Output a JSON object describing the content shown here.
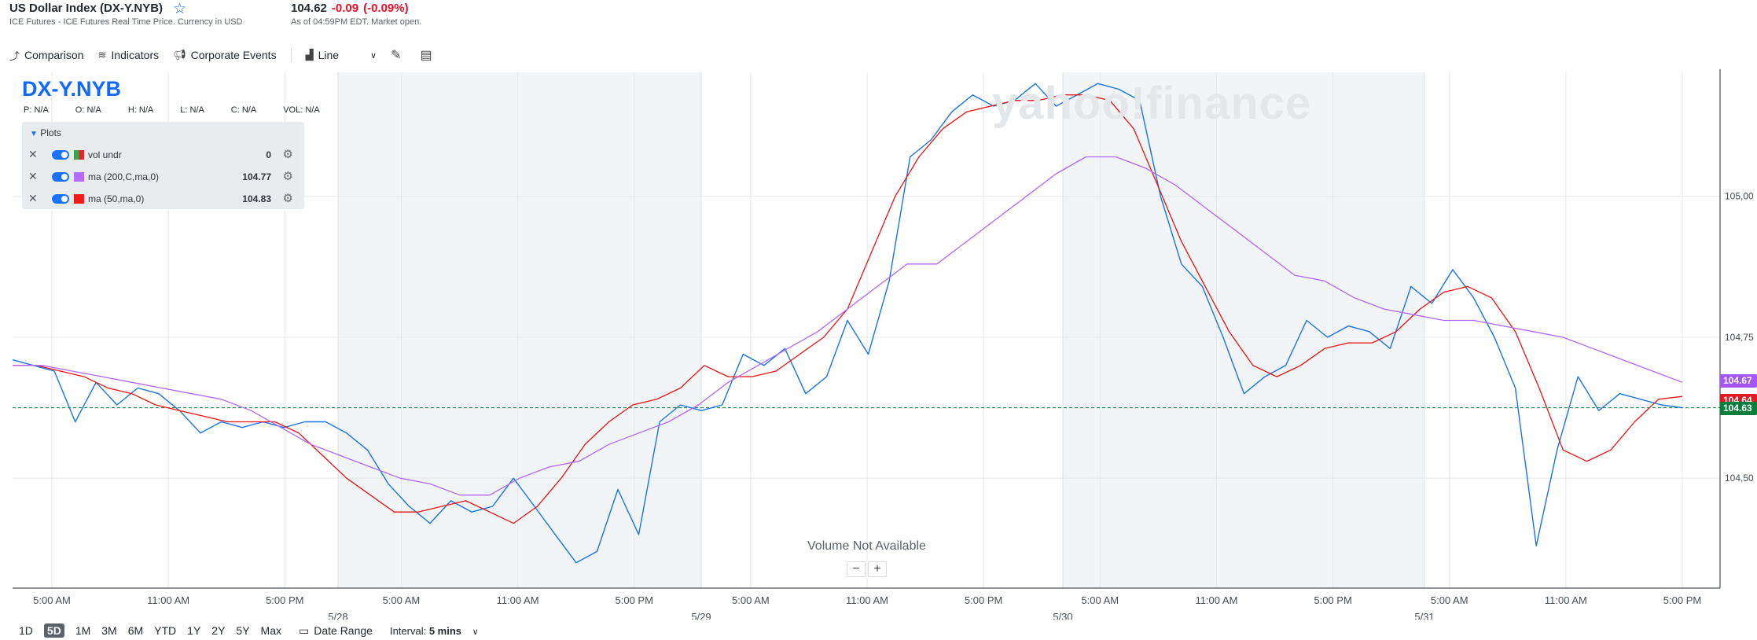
{
  "header": {
    "title": "US Dollar Index (DX-Y.NYB)",
    "subtitle": "ICE Futures - ICE Futures Real Time Price. Currency in USD",
    "price": "104.62",
    "change": "-0.09",
    "change_pct": "(-0.09%)",
    "as_of": "As of 04:59PM EDT. Market open."
  },
  "toolbar": {
    "comparison": "Comparison",
    "indicators": "Indicators",
    "corporate_events": "Corporate Events",
    "chart_type": "Line"
  },
  "chart_overlay": {
    "symbol": "DX-Y.NYB",
    "ohlc": [
      "P: N/A",
      "O: N/A",
      "H: N/A",
      "L: N/A",
      "C: N/A",
      "VOL: N/A"
    ],
    "plots_header": "Plots",
    "plots": [
      {
        "name": "vol undr",
        "value": "0",
        "color": "#2ea043"
      },
      {
        "name": "ma (200,C,ma,0)",
        "value": "104.77",
        "color": "#b266ff"
      },
      {
        "name": "ma (50,ma,0)",
        "value": "104.83",
        "color": "#ee1111"
      }
    ],
    "volume_note": "Volume Not Available",
    "watermark": "yahoo!finance",
    "zoom_out": "−",
    "zoom_in": "+"
  },
  "price_tags": [
    {
      "label": "104.67",
      "color": "#a855f7",
      "value": 104.67
    },
    {
      "label": "104.64",
      "color": "#e21b23",
      "value": 104.645
    },
    {
      "label": "104.63",
      "color": "#0a7f3a",
      "value": 104.625
    }
  ],
  "chart_data": {
    "type": "line",
    "ylim": [
      104.305,
      105.22
    ],
    "y_ticks": [
      104.5,
      104.75,
      105.0
    ],
    "y_tick_labels": [
      "104,50",
      "104,75",
      "105,00"
    ],
    "time_labels": [
      "5:00 AM",
      "11:00 AM",
      "5:00 PM",
      "5:00 AM",
      "11:00 AM",
      "5:00 PM",
      "5:00 AM",
      "11:00 AM",
      "5:00 PM",
      "5:00 AM",
      "11:00 AM",
      "5:00 PM",
      "5:00 AM",
      "11:00 AM",
      "5:00 PM"
    ],
    "date_labels": [
      "5/28",
      "5/29",
      "5/30",
      "5/31"
    ],
    "current_price": 104.625,
    "series": [
      {
        "name": "DX-Y.NYB",
        "color": "#1a73e8",
        "values": [
          104.71,
          104.7,
          104.69,
          104.6,
          104.67,
          104.63,
          104.66,
          104.65,
          104.62,
          104.58,
          104.6,
          104.59,
          104.6,
          104.59,
          104.6,
          104.6,
          104.58,
          104.55,
          104.49,
          104.45,
          104.42,
          104.46,
          104.44,
          104.45,
          104.5,
          104.45,
          104.4,
          104.35,
          104.37,
          104.48,
          104.4,
          104.6,
          104.63,
          104.62,
          104.63,
          104.72,
          104.7,
          104.73,
          104.65,
          104.68,
          104.78,
          104.72,
          104.85,
          105.07,
          105.1,
          105.15,
          105.18,
          105.16,
          105.17,
          105.2,
          105.16,
          105.18,
          105.2,
          105.19,
          105.17,
          105.0,
          104.88,
          104.84,
          104.75,
          104.65,
          104.68,
          104.7,
          104.78,
          104.75,
          104.77,
          104.76,
          104.73,
          104.84,
          104.81,
          104.87,
          104.82,
          104.75,
          104.66,
          104.38,
          104.55,
          104.68,
          104.62,
          104.65,
          104.64,
          104.63,
          104.625
        ]
      },
      {
        "name": "ma (50,ma,0)",
        "color": "#ee1111",
        "values": [
          104.7,
          104.7,
          104.69,
          104.68,
          104.66,
          104.65,
          104.63,
          104.62,
          104.61,
          104.6,
          104.6,
          104.6,
          104.58,
          104.54,
          104.5,
          104.47,
          104.44,
          104.44,
          104.45,
          104.46,
          104.44,
          104.42,
          104.45,
          104.5,
          104.56,
          104.6,
          104.63,
          104.64,
          104.66,
          104.7,
          104.68,
          104.68,
          104.69,
          104.72,
          104.75,
          104.8,
          104.9,
          105.0,
          105.07,
          105.12,
          105.15,
          105.16,
          105.17,
          105.17,
          105.18,
          105.18,
          105.17,
          105.12,
          105.02,
          104.92,
          104.84,
          104.76,
          104.7,
          104.68,
          104.7,
          104.73,
          104.74,
          104.74,
          104.76,
          104.8,
          104.83,
          104.84,
          104.82,
          104.76,
          104.66,
          104.55,
          104.53,
          104.55,
          104.6,
          104.64,
          104.645
        ]
      },
      {
        "name": "ma (200,C,ma,0)",
        "color": "#b266ff",
        "values": [
          104.7,
          104.7,
          104.69,
          104.68,
          104.67,
          104.66,
          104.65,
          104.64,
          104.62,
          104.59,
          104.56,
          104.54,
          104.52,
          104.5,
          104.49,
          104.47,
          104.47,
          104.5,
          104.52,
          104.53,
          104.56,
          104.58,
          104.6,
          104.63,
          104.67,
          104.7,
          104.73,
          104.76,
          104.8,
          104.84,
          104.88,
          104.88,
          104.92,
          104.96,
          105.0,
          105.04,
          105.07,
          105.07,
          105.05,
          105.02,
          104.98,
          104.94,
          104.9,
          104.86,
          104.85,
          104.82,
          104.8,
          104.79,
          104.78,
          104.78,
          104.77,
          104.76,
          104.75,
          104.73,
          104.71,
          104.69,
          104.67
        ]
      }
    ]
  }
}
